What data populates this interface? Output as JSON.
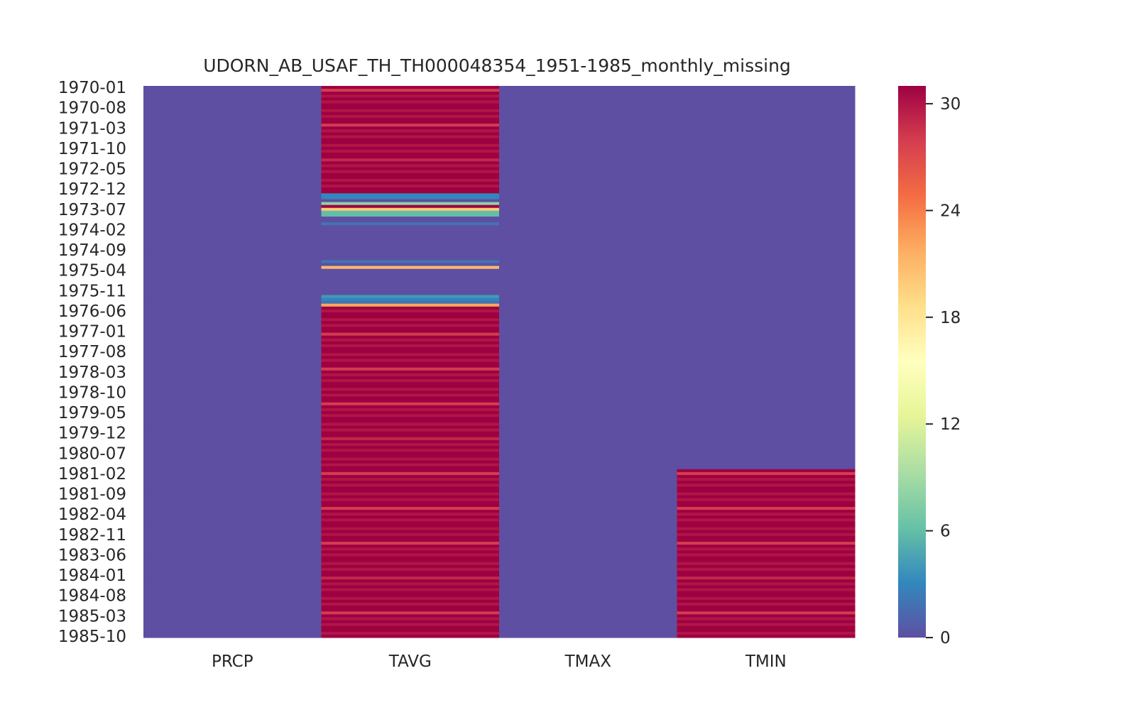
{
  "chart_data": {
    "type": "heatmap",
    "title": "UDORN_AB_USAF_TH_TH000048354_1951-1985_monthly_missing",
    "columns": [
      "PRCP",
      "TAVG",
      "TMAX",
      "TMIN"
    ],
    "row_start": "1970-01",
    "row_end": "1985-10",
    "row_count": 190,
    "ytick_labels": [
      "1970-01",
      "1970-08",
      "1971-03",
      "1971-10",
      "1972-05",
      "1972-12",
      "1973-07",
      "1974-02",
      "1974-09",
      "1975-04",
      "1975-11",
      "1976-06",
      "1977-01",
      "1977-08",
      "1978-03",
      "1978-10",
      "1979-05",
      "1979-12",
      "1980-07",
      "1981-02",
      "1981-09",
      "1982-04",
      "1982-11",
      "1983-06",
      "1984-01",
      "1984-08",
      "1985-03",
      "1985-10"
    ],
    "colormap": "Spectral_r",
    "vmin": 0,
    "vmax": 31,
    "colorbar_ticks": [
      0,
      6,
      12,
      18,
      24,
      30
    ],
    "series": [
      {
        "name": "PRCP",
        "default": 0,
        "segments": []
      },
      {
        "name": "TAVG",
        "default": 0,
        "segments": [
          {
            "from": "1970-01",
            "to": "1973-01",
            "pattern": "days_in_month"
          },
          {
            "from": "1973-02",
            "to": "1973-03",
            "value": 3
          },
          {
            "from": "1973-05",
            "to": "1973-05",
            "value": 8
          },
          {
            "from": "1973-06",
            "to": "1973-06",
            "value": 31
          },
          {
            "from": "1973-07",
            "to": "1973-07",
            "value": 20
          },
          {
            "from": "1973-08",
            "to": "1973-09",
            "value": 6
          },
          {
            "from": "1973-12",
            "to": "1973-12",
            "value": 2
          },
          {
            "from": "1975-01",
            "to": "1975-01",
            "value": 2
          },
          {
            "from": "1975-03",
            "to": "1975-03",
            "value": 21
          },
          {
            "from": "1976-01",
            "to": "1976-01",
            "value": 4
          },
          {
            "from": "1976-02",
            "to": "1976-02",
            "value": 3
          },
          {
            "from": "1976-03",
            "to": "1976-03",
            "value": 2
          },
          {
            "from": "1976-04",
            "to": "1976-04",
            "value": 22
          },
          {
            "from": "1976-05",
            "to": "1985-10",
            "pattern": "days_in_month"
          }
        ]
      },
      {
        "name": "TMAX",
        "default": 0,
        "segments": []
      },
      {
        "name": "TMIN",
        "default": 0,
        "segments": [
          {
            "from": "1981-01",
            "to": "1985-10",
            "pattern": "days_in_month"
          }
        ]
      }
    ]
  }
}
